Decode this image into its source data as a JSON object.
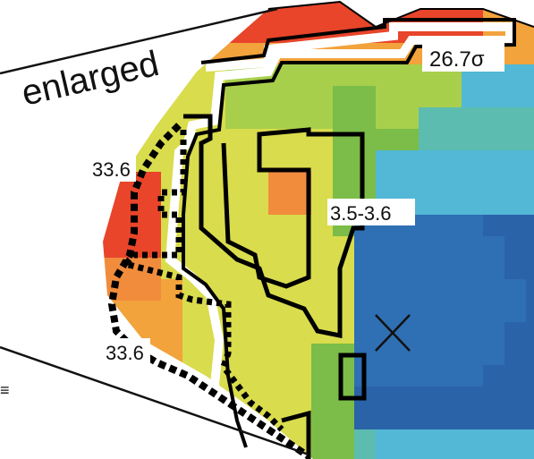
{
  "title": "enlarged",
  "labels": {
    "sigma": "26.7σ",
    "upper_left": "33.6",
    "lower_left": "33.6",
    "range": "3.5-3.6"
  },
  "edge_mark": "≡",
  "marker": "x-marker-icon",
  "colors": {
    "red": "#e8452a",
    "orange": "#f08c3c",
    "light_orange": "#f2a33c",
    "yellow": "#d9dc4c",
    "light_green": "#a8cf4c",
    "green": "#7bbd48",
    "teal": "#5cbcb0",
    "cyan": "#52b8d6",
    "blue": "#2f6fb3",
    "dark_blue": "#2a63a8",
    "contour": "#000000"
  }
}
